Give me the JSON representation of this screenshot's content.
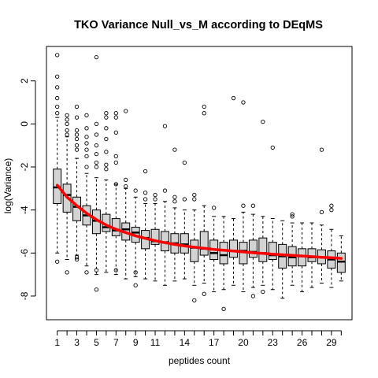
{
  "chart_data": {
    "type": "box",
    "title": "TKO Variance Null_vs_M according to DEqMS",
    "xlabel": "peptides count",
    "ylabel": "log(Variance)",
    "ylim": [
      -9.1,
      3.6
    ],
    "y_ticks": [
      -8,
      -6,
      -4,
      -2,
      0,
      2
    ],
    "x_tick_labels": [
      "1",
      "3",
      "5",
      "7",
      "9",
      "11",
      "14",
      "17",
      "20",
      "23",
      "26",
      "29"
    ],
    "x_tick_positions": [
      1,
      3,
      5,
      7,
      9,
      11,
      14,
      17,
      20,
      23,
      26,
      29
    ],
    "colors": {
      "box_fill": "#d3d3d3",
      "trend_line": "#ff0000"
    },
    "boxes": [
      {
        "x": 1,
        "whisker_low": -6.0,
        "q1": -3.7,
        "median": -2.95,
        "q3": -2.1,
        "whisker_high": 0.3,
        "outliers": [
          3.2,
          2.2,
          1.7,
          1.2,
          0.8,
          0.5,
          -6.4
        ]
      },
      {
        "x": 2,
        "whisker_low": -6.3,
        "q1": -4.1,
        "median": -3.3,
        "q3": -2.8,
        "whisker_high": -0.6,
        "outliers": [
          0.4,
          0.2,
          0.0,
          -0.3,
          -0.5,
          -6.9
        ]
      },
      {
        "x": 3,
        "whisker_low": -6.1,
        "q1": -4.5,
        "median": -3.85,
        "q3": -3.4,
        "whisker_high": -1.6,
        "outliers": [
          0.8,
          0.3,
          -0.3,
          -0.5,
          -0.7,
          -1.0,
          -1.2,
          -6.3,
          -6.2
        ]
      },
      {
        "x": 4,
        "whisker_low": -6.6,
        "q1": -4.7,
        "median": -4.25,
        "q3": -3.8,
        "whisker_high": -2.3,
        "outliers": [
          0.4,
          -0.2,
          -0.6,
          -0.9,
          -1.2,
          -1.5,
          -2.0,
          -6.9
        ]
      },
      {
        "x": 5,
        "whisker_low": -7.0,
        "q1": -5.1,
        "median": -4.5,
        "q3": -4.0,
        "whisker_high": -2.5,
        "outliers": [
          3.1,
          0.0,
          -0.5,
          -1.0,
          -1.4,
          -1.8,
          -2.0,
          -7.7,
          -6.8
        ]
      },
      {
        "x": 6,
        "whisker_low": -6.9,
        "q1": -5.0,
        "median": -4.8,
        "q3": -4.2,
        "whisker_high": -2.6,
        "outliers": [
          0.5,
          0.3,
          -0.2,
          -0.7,
          -1.3,
          -1.9,
          -2.1
        ]
      },
      {
        "x": 7,
        "whisker_low": -7.0,
        "q1": -5.2,
        "median": -4.95,
        "q3": -4.4,
        "whisker_high": -2.8,
        "outliers": [
          0.5,
          0.3,
          -0.4,
          -1.5,
          -1.8,
          -2.8,
          -6.8
        ]
      },
      {
        "x": 8,
        "whisker_low": -7.2,
        "q1": -5.4,
        "median": -4.9,
        "q3": -4.6,
        "whisker_high": -3.0,
        "outliers": [
          0.6,
          -2.6,
          -2.9
        ]
      },
      {
        "x": 9,
        "whisker_low": -7.1,
        "q1": -5.5,
        "median": -5.05,
        "q3": -4.8,
        "whisker_high": -3.4,
        "outliers": [
          -3.1,
          -6.9,
          -7.5
        ]
      },
      {
        "x": 10,
        "whisker_low": -7.2,
        "q1": -5.8,
        "median": -5.3,
        "q3": -4.95,
        "whisker_high": -3.7,
        "outliers": [
          -2.2,
          -3.2,
          -3.5
        ]
      },
      {
        "x": 11,
        "whisker_low": -7.3,
        "q1": -5.6,
        "median": -5.45,
        "q3": -4.9,
        "whisker_high": -3.7,
        "outliers": [
          -3.3,
          -3.5
        ]
      },
      {
        "x": 12,
        "whisker_low": -7.5,
        "q1": -5.9,
        "median": -5.5,
        "q3": -5.0,
        "whisker_high": -3.6,
        "outliers": [
          -0.1,
          -3.1
        ]
      },
      {
        "x": 13,
        "whisker_low": -7.3,
        "q1": -6.0,
        "median": -5.55,
        "q3": -5.1,
        "whisker_high": -3.9,
        "outliers": [
          -1.2,
          -3.4,
          -3.6
        ]
      },
      {
        "x": 14,
        "whisker_low": -7.2,
        "q1": -6.0,
        "median": -5.6,
        "q3": -5.1,
        "whisker_high": -4.0,
        "outliers": [
          -1.8,
          -3.5
        ]
      },
      {
        "x": 15,
        "whisker_low": -7.5,
        "q1": -6.4,
        "median": -5.75,
        "q3": -5.4,
        "whisker_high": -4.0,
        "outliers": [
          -3.3,
          -3.5,
          -8.2
        ]
      },
      {
        "x": 16,
        "whisker_low": -7.4,
        "q1": -6.1,
        "median": -5.8,
        "q3": -5.0,
        "whisker_high": -3.8,
        "outliers": [
          0.8,
          0.5,
          -7.9
        ]
      },
      {
        "x": 17,
        "whisker_low": -7.8,
        "q1": -6.3,
        "median": -6.0,
        "q3": -5.4,
        "whisker_high": -4.3,
        "outliers": [
          -3.9
        ]
      },
      {
        "x": 18,
        "whisker_low": -7.7,
        "q1": -6.5,
        "median": -6.1,
        "q3": -5.5,
        "whisker_high": -4.3,
        "outliers": [
          -8.6
        ]
      },
      {
        "x": 19,
        "whisker_low": -7.5,
        "q1": -6.2,
        "median": -5.9,
        "q3": -5.4,
        "whisker_high": -4.4,
        "outliers": [
          1.2
        ]
      },
      {
        "x": 20,
        "whisker_low": -7.8,
        "q1": -6.5,
        "median": -5.9,
        "q3": -5.5,
        "whisker_high": -4.1,
        "outliers": [
          1.0,
          -3.8
        ]
      },
      {
        "x": 21,
        "whisker_low": -7.6,
        "q1": -6.2,
        "median": -5.95,
        "q3": -5.4,
        "whisker_high": -4.2,
        "outliers": [
          -3.8,
          -8.0
        ]
      },
      {
        "x": 22,
        "whisker_low": -7.5,
        "q1": -6.4,
        "median": -6.0,
        "q3": -5.3,
        "whisker_high": -4.3,
        "outliers": [
          0.1,
          -7.8
        ]
      },
      {
        "x": 23,
        "whisker_low": -7.7,
        "q1": -6.3,
        "median": -6.1,
        "q3": -5.5,
        "whisker_high": -4.4,
        "outliers": [
          -1.1
        ]
      },
      {
        "x": 24,
        "whisker_low": -8.1,
        "q1": -6.7,
        "median": -6.15,
        "q3": -5.6,
        "whisker_high": -4.5,
        "outliers": []
      },
      {
        "x": 25,
        "whisker_low": -7.5,
        "q1": -6.6,
        "median": -6.2,
        "q3": -5.7,
        "whisker_high": -4.6,
        "outliers": [
          -4.3,
          -4.2
        ]
      },
      {
        "x": 26,
        "whisker_low": -7.8,
        "q1": -6.6,
        "median": -6.15,
        "q3": -5.8,
        "whisker_high": -4.6,
        "outliers": []
      },
      {
        "x": 27,
        "whisker_low": -7.6,
        "q1": -6.4,
        "median": -6.2,
        "q3": -5.8,
        "whisker_high": -4.6,
        "outliers": []
      },
      {
        "x": 28,
        "whisker_low": -7.4,
        "q1": -6.5,
        "median": -6.2,
        "q3": -5.85,
        "whisker_high": -4.7,
        "outliers": [
          -1.2,
          -4.1
        ]
      },
      {
        "x": 29,
        "whisker_low": -7.6,
        "q1": -6.7,
        "median": -6.3,
        "q3": -5.9,
        "whisker_high": -4.9,
        "outliers": [
          -3.8,
          -4.0
        ]
      },
      {
        "x": 30,
        "whisker_low": -7.3,
        "q1": -6.9,
        "median": -6.4,
        "q3": -6.0,
        "whisker_high": -5.2,
        "outliers": []
      }
    ],
    "trend_line": {
      "x": [
        1,
        2,
        3,
        4,
        5,
        6,
        7,
        8,
        9,
        10,
        11,
        12,
        13,
        14,
        15,
        16,
        17,
        18,
        19,
        20,
        21,
        22,
        23,
        24,
        25,
        26,
        27,
        28,
        29,
        30
      ],
      "y": [
        -2.85,
        -3.4,
        -3.8,
        -4.15,
        -4.45,
        -4.7,
        -4.9,
        -5.05,
        -5.2,
        -5.32,
        -5.43,
        -5.52,
        -5.6,
        -5.67,
        -5.73,
        -5.78,
        -5.83,
        -5.87,
        -5.91,
        -5.95,
        -5.99,
        -6.02,
        -6.05,
        -6.08,
        -6.11,
        -6.14,
        -6.17,
        -6.2,
        -6.22,
        -6.25
      ]
    }
  }
}
